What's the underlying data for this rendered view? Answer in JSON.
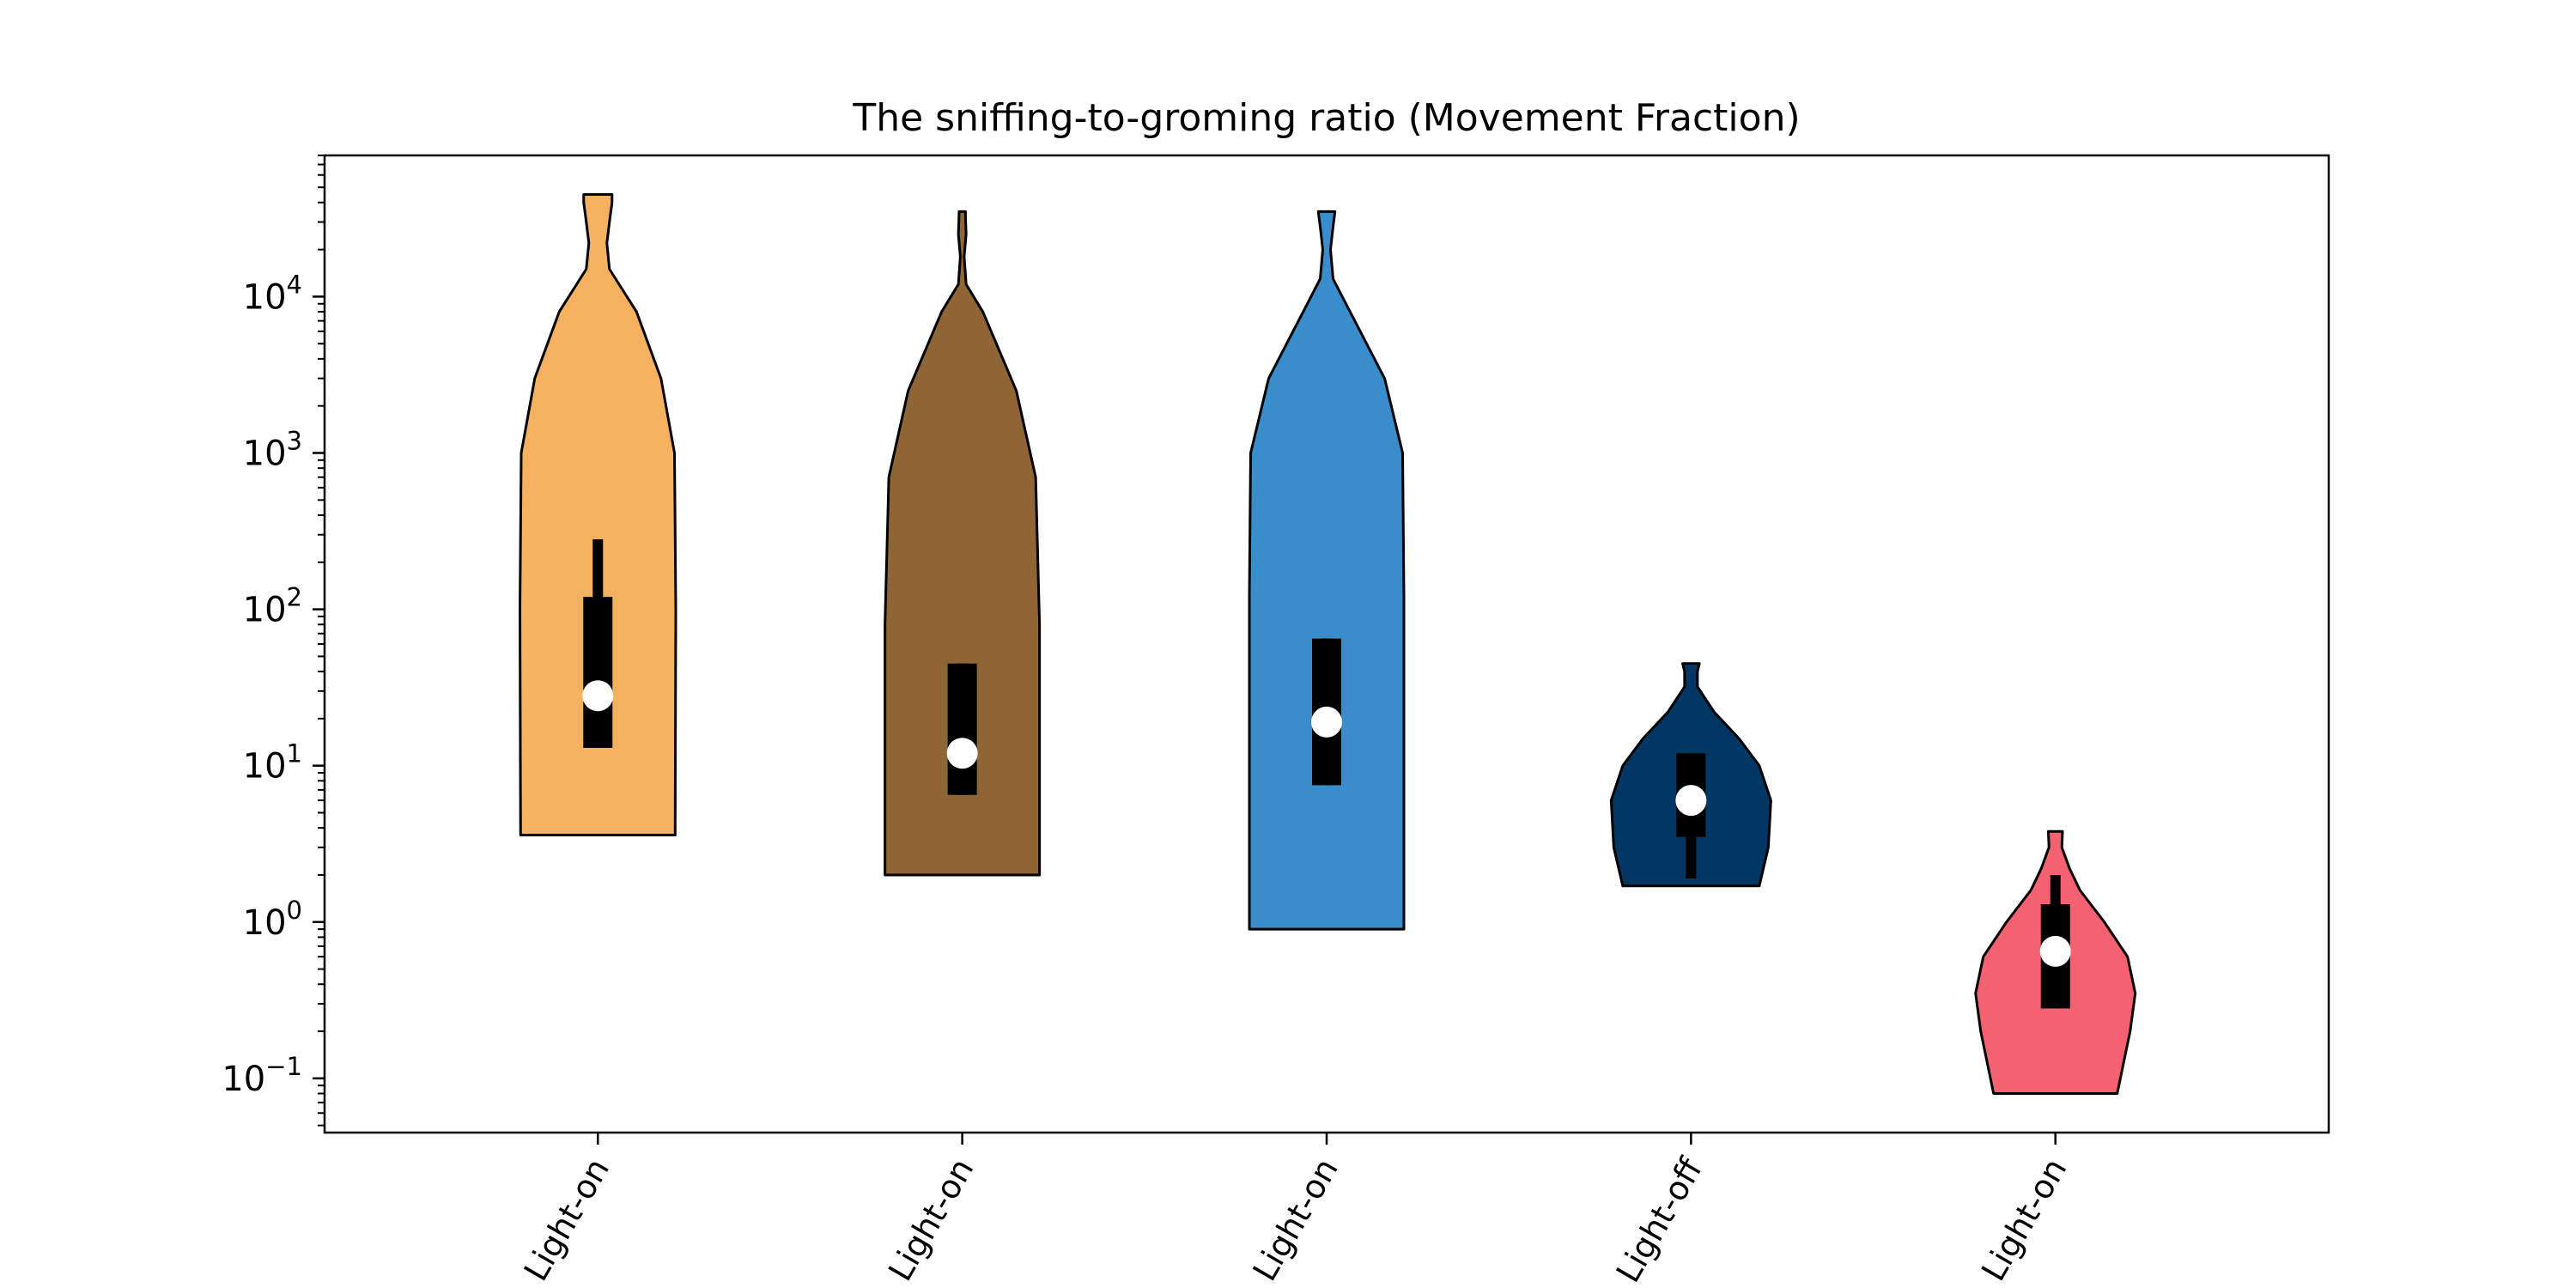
{
  "chart_data": {
    "type": "violin",
    "title": "The sniffing-to-groming ratio (Movement Fraction)",
    "xlabel": "",
    "ylabel": "",
    "yscale": "log",
    "ylim": [
      0.045,
      80000
    ],
    "y_major_ticks": [
      {
        "value": 0.1,
        "base": "10",
        "exp": "−1"
      },
      {
        "value": 1,
        "base": "10",
        "exp": "0"
      },
      {
        "value": 10,
        "base": "10",
        "exp": "1"
      },
      {
        "value": 100,
        "base": "10",
        "exp": "2"
      },
      {
        "value": 1000,
        "base": "10",
        "exp": "3"
      },
      {
        "value": 10000,
        "base": "10",
        "exp": "4"
      }
    ],
    "categories": [
      "Light-on",
      "Light-on",
      "Light-on",
      "Light-off",
      "Light-on"
    ],
    "grid": false,
    "series": [
      {
        "color": "#F4B160",
        "min": 3.6,
        "max": 45000,
        "q1": 13,
        "median": 28,
        "q3": 120,
        "whisker_low": 13,
        "whisker_high": 280,
        "profile": [
          [
            3.6,
            0.6
          ],
          [
            100,
            0.605
          ],
          [
            1000,
            0.595
          ],
          [
            3000,
            0.49
          ],
          [
            8000,
            0.3
          ],
          [
            15000,
            0.09
          ],
          [
            22000,
            0.07
          ],
          [
            30000,
            0.09
          ],
          [
            40000,
            0.11
          ],
          [
            45000,
            0.11
          ]
        ]
      },
      {
        "color": "#8F6535",
        "min": 2.0,
        "max": 35000,
        "q1": 6.5,
        "median": 12,
        "q3": 45,
        "whisker_low": 6.5,
        "whisker_high": 45,
        "profile": [
          [
            2.0,
            0.6
          ],
          [
            80,
            0.6
          ],
          [
            700,
            0.57
          ],
          [
            2500,
            0.42
          ],
          [
            8000,
            0.16
          ],
          [
            12000,
            0.03
          ],
          [
            18000,
            0.015
          ],
          [
            25000,
            0.03
          ],
          [
            33000,
            0.025
          ],
          [
            35000,
            0.025
          ]
        ]
      },
      {
        "color": "#398DCB",
        "min": 0.9,
        "max": 35000,
        "q1": 7.5,
        "median": 19,
        "q3": 65,
        "whisker_low": 7.5,
        "whisker_high": 65,
        "profile": [
          [
            0.9,
            0.6
          ],
          [
            120,
            0.6
          ],
          [
            1000,
            0.59
          ],
          [
            3000,
            0.45
          ],
          [
            9000,
            0.15
          ],
          [
            13000,
            0.05
          ],
          [
            20000,
            0.03
          ],
          [
            28000,
            0.05
          ],
          [
            35000,
            0.065
          ]
        ]
      },
      {
        "color": "#023763",
        "min": 1.7,
        "max": 45,
        "q1": 3.5,
        "median": 6,
        "q3": 12,
        "whisker_low": 1.9,
        "whisker_high": 12,
        "profile": [
          [
            1.7,
            0.53
          ],
          [
            3,
            0.6
          ],
          [
            6,
            0.62
          ],
          [
            10,
            0.53
          ],
          [
            15,
            0.37
          ],
          [
            22,
            0.18
          ],
          [
            32,
            0.05
          ],
          [
            40,
            0.05
          ],
          [
            45,
            0.065
          ]
        ]
      },
      {
        "color": "#F46171",
        "min": 0.08,
        "max": 3.8,
        "q1": 0.28,
        "median": 0.65,
        "q3": 1.3,
        "whisker_low": 0.28,
        "whisker_high": 2.0,
        "profile": [
          [
            0.08,
            0.48
          ],
          [
            0.2,
            0.58
          ],
          [
            0.35,
            0.62
          ],
          [
            0.6,
            0.56
          ],
          [
            1.0,
            0.38
          ],
          [
            1.6,
            0.19
          ],
          [
            2.2,
            0.11
          ],
          [
            3.0,
            0.05
          ],
          [
            3.8,
            0.055
          ]
        ]
      }
    ]
  }
}
